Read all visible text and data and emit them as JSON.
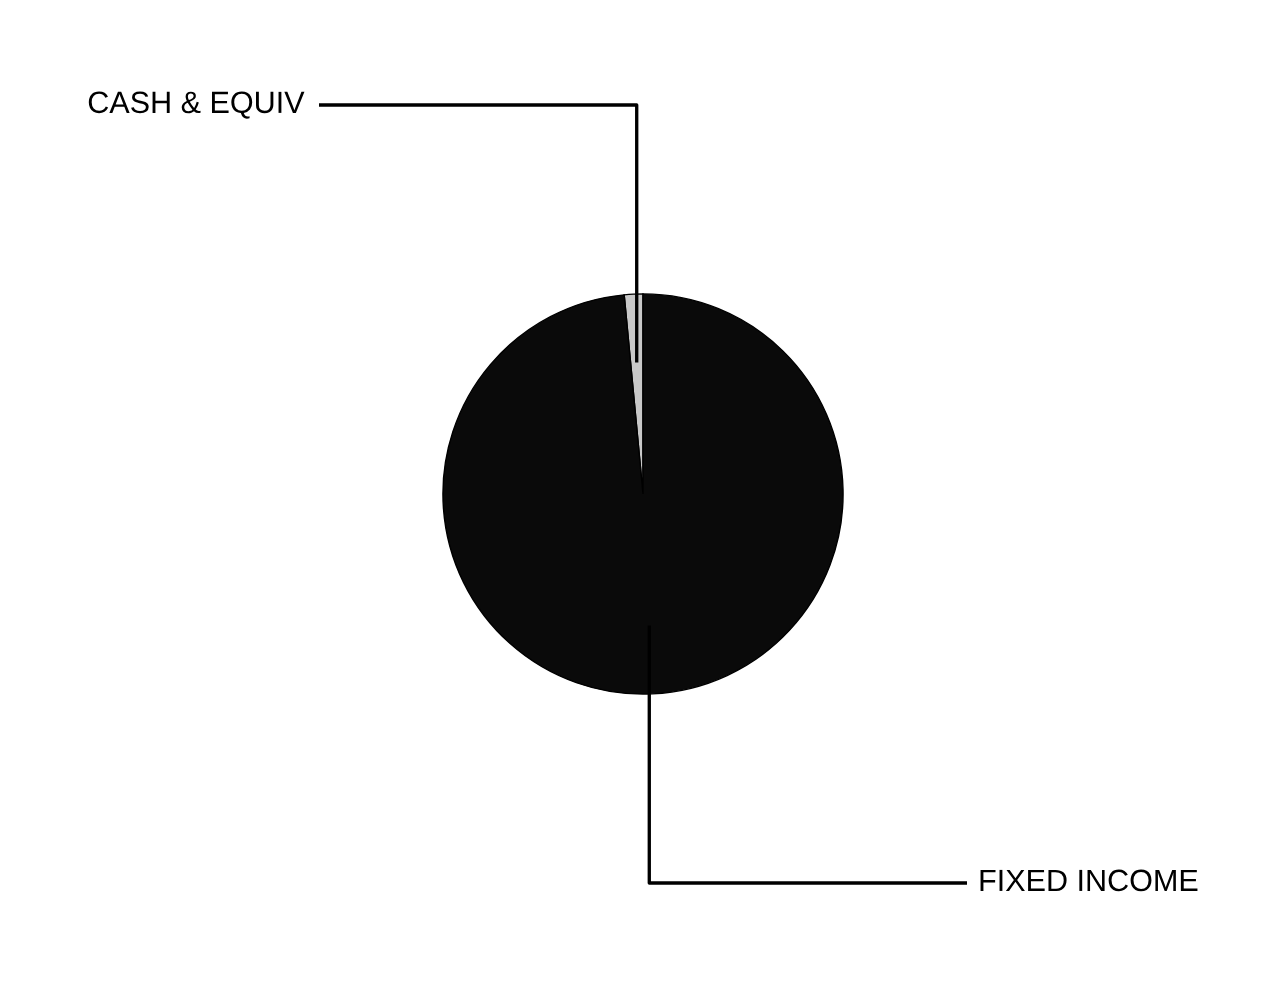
{
  "chart_data": {
    "type": "pie",
    "categories": [
      "CASH & EQUIV",
      "FIXED INCOME"
    ],
    "values": [
      1.5,
      98.5
    ],
    "colors": [
      "#c8c8c8",
      "#0a0a0a"
    ]
  }
}
